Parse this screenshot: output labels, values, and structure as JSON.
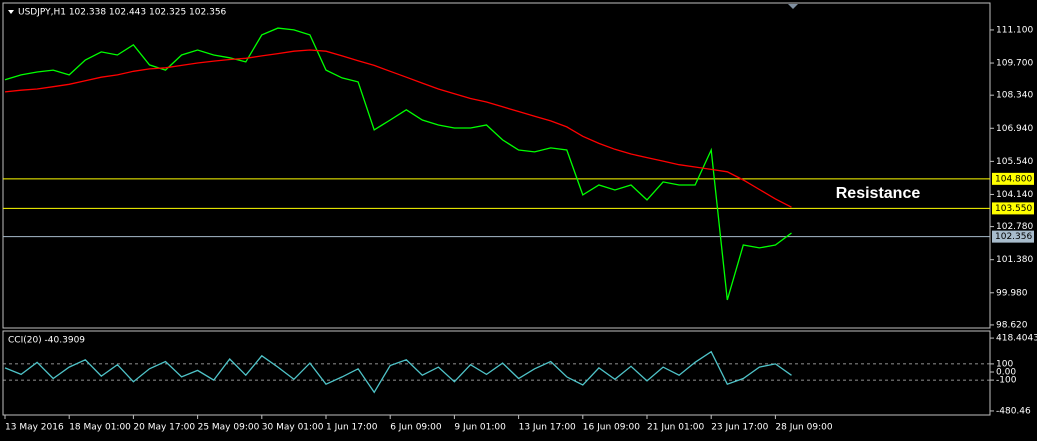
{
  "chart_data": [
    {
      "type": "line",
      "title": "USDJPY,H1  102.338 102.443 102.325 102.356",
      "categories": [
        "13 May 2016",
        null,
        null,
        null,
        "18 May 01:00",
        null,
        null,
        null,
        "20 May 17:00",
        null,
        null,
        null,
        "25 May 09:00",
        null,
        null,
        null,
        "30 May 01:00",
        null,
        null,
        null,
        "1 Jun 17:00",
        null,
        null,
        null,
        "6 Jun 09:00",
        null,
        null,
        null,
        "9 Jun 01:00",
        null,
        null,
        null,
        "13 Jun 17:00",
        null,
        null,
        null,
        "16 Jun 09:00",
        null,
        null,
        null,
        "21 Jun 01:00",
        null,
        null,
        null,
        "23 Jun 17:00",
        null,
        null,
        null,
        "28 Jun 09:00",
        null
      ],
      "series": [
        {
          "color": "#00ff00",
          "values": [
            108.99,
            109.2,
            109.32,
            109.4,
            109.2,
            109.83,
            110.17,
            110.04,
            110.47,
            109.62,
            109.4,
            110.04,
            110.25,
            110.04,
            109.92,
            109.75,
            110.89,
            111.18,
            111.1,
            110.89,
            109.4,
            109.07,
            108.9,
            106.87,
            107.29,
            107.72,
            107.29,
            107.08,
            106.95,
            106.95,
            107.08,
            106.45,
            106.02,
            105.94,
            106.11,
            106.02,
            104.12,
            104.54,
            104.33,
            104.54,
            103.91,
            104.67,
            104.54,
            104.54,
            106.02,
            99.68,
            102.0,
            101.88,
            102.0,
            102.51
          ]
        },
        {
          "color": "#ff0000",
          "values": [
            108.48,
            108.55,
            108.6,
            108.7,
            108.8,
            108.95,
            109.1,
            109.2,
            109.35,
            109.45,
            109.5,
            109.6,
            109.7,
            109.78,
            109.85,
            109.9,
            110.0,
            110.1,
            110.2,
            110.25,
            110.2,
            110.0,
            109.8,
            109.6,
            109.35,
            109.1,
            108.85,
            108.6,
            108.4,
            108.2,
            108.05,
            107.85,
            107.65,
            107.45,
            107.25,
            107.0,
            106.6,
            106.3,
            106.05,
            105.85,
            105.7,
            105.55,
            105.4,
            105.3,
            105.2,
            105.1,
            104.75,
            104.35,
            103.95,
            103.6
          ]
        }
      ],
      "ylim": [
        98.49,
        112.24
      ],
      "yticks": [
        {
          "value": 111.1,
          "label": "111.100"
        },
        {
          "value": 109.7,
          "label": "109.700"
        },
        {
          "value": 108.34,
          "label": "108.340"
        },
        {
          "value": 106.94,
          "label": "106.940"
        },
        {
          "value": 105.54,
          "label": "105.540"
        },
        {
          "value": 104.14,
          "label": "104.140"
        },
        {
          "value": 102.78,
          "label": "102.780"
        },
        {
          "value": 101.38,
          "label": "101.380"
        },
        {
          "value": 99.98,
          "label": "99.980"
        },
        {
          "value": 98.62,
          "label": "98.620"
        }
      ],
      "hlines": [
        {
          "value": 104.8,
          "label": "104.800",
          "color": "#ffff00"
        },
        {
          "value": 103.55,
          "label": "103.550",
          "color": "#ffff00"
        },
        {
          "value": 102.356,
          "label": "102.356",
          "color": "#a8bccc"
        }
      ],
      "annotation": "Resistance"
    },
    {
      "type": "line",
      "title": "CCI(20) -40.3909",
      "series": [
        {
          "color": "#4fc3c8",
          "values": [
            50,
            -30,
            120,
            -80,
            60,
            150,
            -50,
            90,
            -120,
            40,
            130,
            -60,
            20,
            -100,
            160,
            -40,
            200,
            60,
            -90,
            110,
            -150,
            -60,
            40,
            -250,
            80,
            150,
            -40,
            60,
            -120,
            90,
            -30,
            110,
            -80,
            40,
            130,
            -60,
            -160,
            50,
            -90,
            70,
            -110,
            60,
            -40,
            120,
            250,
            -150,
            -80,
            60,
            100,
            -40.3909
          ]
        }
      ],
      "ylim": [
        -530.4,
        505.8
      ],
      "yticks": [
        418.4043,
        100,
        {
          "value": 0,
          "label": "0.00"
        },
        -100,
        -480.46
      ],
      "levels": [
        100,
        -100
      ]
    }
  ]
}
